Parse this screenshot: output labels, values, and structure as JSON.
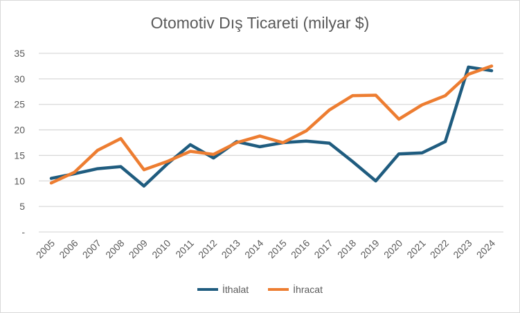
{
  "chart_data": {
    "type": "line",
    "title": "Otomotiv Dış Ticareti (milyar $)",
    "xlabel": "",
    "ylabel": "",
    "categories": [
      "2005",
      "2006",
      "2007",
      "2008",
      "2009",
      "2010",
      "2011",
      "2012",
      "2013",
      "2014",
      "2015",
      "2016",
      "2017",
      "2018",
      "2019",
      "2020",
      "2021",
      "2022",
      "2023",
      "2024"
    ],
    "ylim": [
      0,
      35
    ],
    "yticks": [
      0,
      5,
      10,
      15,
      20,
      25,
      30,
      35
    ],
    "ytick_labels": [
      "-",
      "5",
      "10",
      "15",
      "20",
      "25",
      "30",
      "35"
    ],
    "grid": true,
    "legend": "bottom",
    "series": [
      {
        "name": "İthalat",
        "color": "#1f5c7f",
        "values": [
          10.5,
          11.4,
          12.4,
          12.8,
          9.0,
          13.3,
          17.1,
          14.5,
          17.7,
          16.7,
          17.5,
          17.8,
          17.4,
          13.8,
          10.0,
          15.3,
          15.5,
          17.7,
          32.3,
          31.6
        ]
      },
      {
        "name": "İhracat",
        "color": "#ed7d31",
        "values": [
          9.6,
          11.7,
          16.0,
          18.3,
          12.2,
          13.8,
          15.8,
          15.2,
          17.5,
          18.8,
          17.5,
          19.8,
          23.9,
          26.7,
          26.8,
          22.1,
          24.9,
          26.7,
          30.9,
          32.5
        ]
      }
    ]
  }
}
